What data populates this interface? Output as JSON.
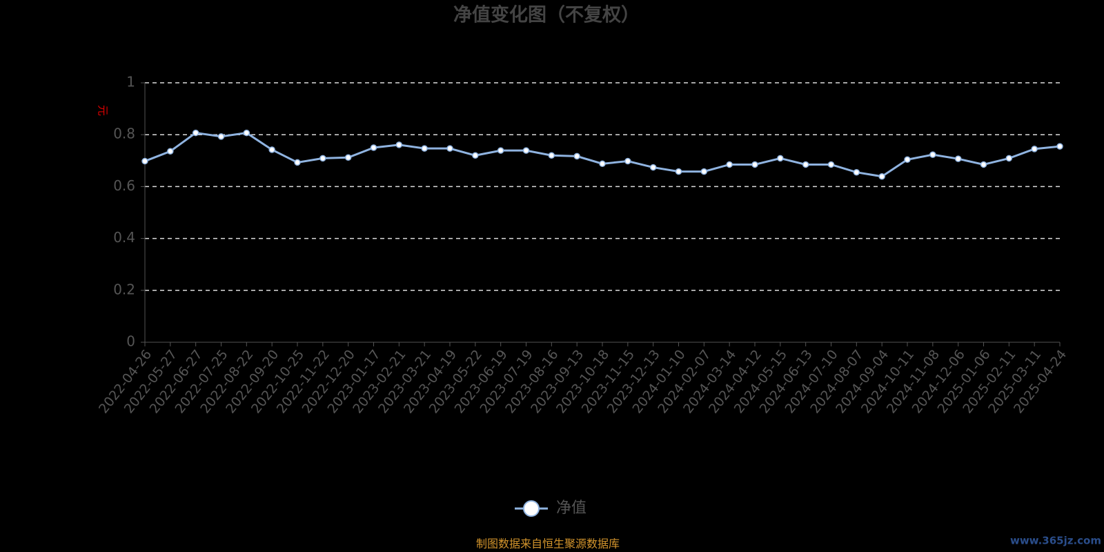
{
  "chart_data": {
    "type": "line",
    "title": "净值变化图（不复权）",
    "y_label": "元",
    "categories": [
      "2022-04-26",
      "2022-05-27",
      "2022-06-27",
      "2022-07-25",
      "2022-08-22",
      "2022-09-20",
      "2022-10-25",
      "2022-11-22",
      "2022-12-20",
      "2023-01-17",
      "2023-02-21",
      "2023-03-21",
      "2023-04-19",
      "2023-05-22",
      "2023-06-19",
      "2023-07-19",
      "2023-08-16",
      "2023-09-13",
      "2023-10-18",
      "2023-11-15",
      "2023-12-13",
      "2024-01-10",
      "2024-02-07",
      "2024-03-14",
      "2024-04-12",
      "2024-05-15",
      "2024-06-13",
      "2024-07-10",
      "2024-08-07",
      "2024-09-04",
      "2024-10-11",
      "2024-11-08",
      "2024-12-06",
      "2025-01-06",
      "2025-02-11",
      "2025-03-11",
      "2025-04-24"
    ],
    "series": [
      {
        "name": "净值",
        "color": "#8fb3e0",
        "values": [
          0.698,
          0.736,
          0.807,
          0.793,
          0.807,
          0.742,
          0.693,
          0.709,
          0.712,
          0.75,
          0.761,
          0.747,
          0.747,
          0.72,
          0.739,
          0.739,
          0.72,
          0.717,
          0.688,
          0.698,
          0.674,
          0.658,
          0.658,
          0.685,
          0.685,
          0.709,
          0.685,
          0.685,
          0.655,
          0.639,
          0.704,
          0.723,
          0.707,
          0.685,
          0.709,
          0.745,
          0.755
        ]
      }
    ],
    "ylim": [
      0,
      1
    ],
    "yticks": [
      0,
      0.2,
      0.4,
      0.6,
      0.8,
      1
    ],
    "grid": true,
    "legend": "bottom",
    "source": "制图数据来自恒生聚源数据库",
    "watermark": "www.365jz.com"
  }
}
